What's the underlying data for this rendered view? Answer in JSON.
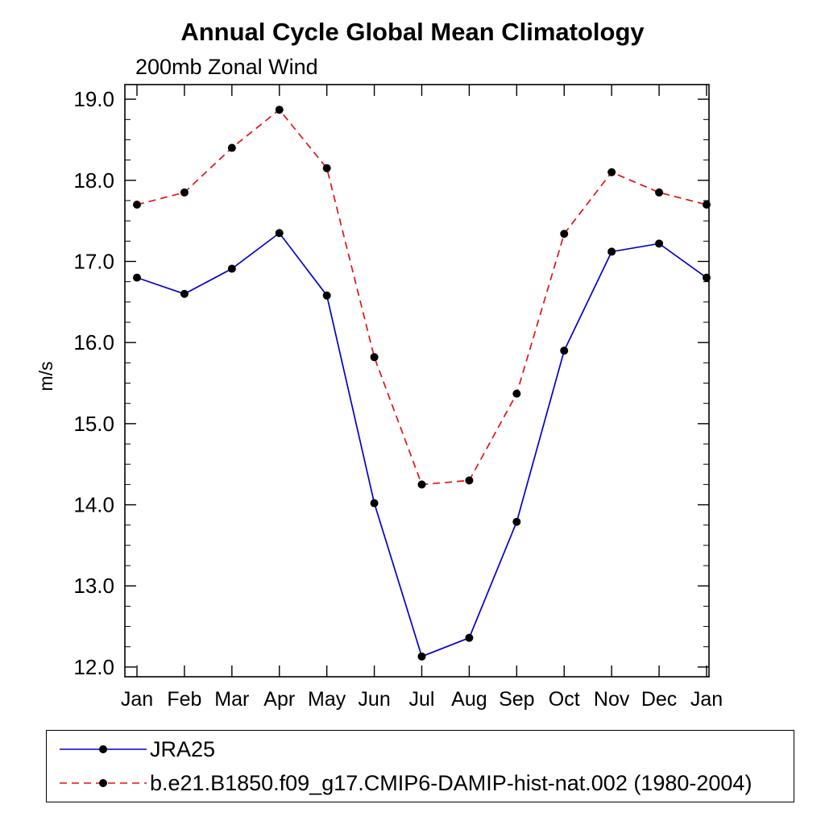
{
  "chart_data": {
    "type": "line",
    "title": "Annual Cycle Global Mean Climatology",
    "subtitle": "200mb Zonal Wind",
    "ylabel": "m/s",
    "xlabel": "",
    "categories": [
      "Jan",
      "Feb",
      "Mar",
      "Apr",
      "May",
      "Jun",
      "Jul",
      "Aug",
      "Sep",
      "Oct",
      "Nov",
      "Dec",
      "Jan"
    ],
    "series": [
      {
        "name": "JRA25",
        "color": "#0000cd",
        "line_style": "solid",
        "marker": "circle",
        "values": [
          16.8,
          16.6,
          16.91,
          17.35,
          16.58,
          14.02,
          12.13,
          12.36,
          13.79,
          15.9,
          17.12,
          17.22,
          16.8
        ]
      },
      {
        "name": "b.e21.B1850.f09_g17.CMIP6-DAMIP-hist-nat.002 (1980-2004)",
        "color": "#e01414",
        "line_style": "dashed",
        "marker": "circle",
        "values": [
          17.7,
          17.85,
          18.4,
          18.87,
          18.15,
          15.82,
          14.25,
          14.3,
          15.37,
          17.34,
          18.1,
          17.85,
          17.7
        ]
      }
    ],
    "marker_color": "#000000",
    "ylim": [
      11.88,
      19.18
    ],
    "yticks": [
      12,
      13,
      14,
      15,
      16,
      17,
      18,
      19
    ],
    "ytick_labels": [
      "12.0",
      "13.0",
      "14.0",
      "15.0",
      "16.0",
      "17.0",
      "18.0",
      "19.0"
    ],
    "ytick_minor_interval": 0.25,
    "grid": false,
    "legend_position": "bottom",
    "frame_color": "#000000"
  }
}
